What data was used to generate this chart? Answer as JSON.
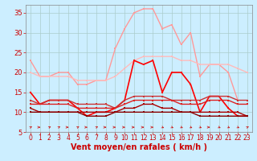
{
  "background_color": "#cceeff",
  "grid_color": "#aacccc",
  "xlabel": "Vent moyen/en rafales ( km/h )",
  "xlabel_color": "#cc0000",
  "xlabel_fontsize": 7,
  "xtick_fontsize": 5.5,
  "ytick_fontsize": 6,
  "ytick_color": "#cc0000",
  "xtick_color": "#cc0000",
  "ylim": [
    5,
    37
  ],
  "xlim": [
    -0.5,
    23.5
  ],
  "yticks": [
    5,
    10,
    15,
    20,
    25,
    30,
    35
  ],
  "xticks": [
    0,
    1,
    2,
    3,
    4,
    5,
    6,
    7,
    8,
    9,
    10,
    11,
    12,
    13,
    14,
    15,
    16,
    17,
    18,
    19,
    20,
    21,
    22,
    23
  ],
  "series": [
    {
      "x": [
        0,
        1,
        2,
        3,
        4,
        5,
        6,
        7,
        8,
        9,
        10,
        11,
        12,
        13,
        14,
        15,
        16,
        17,
        18,
        19,
        20,
        21,
        22
      ],
      "y": [
        23,
        19,
        19,
        20,
        20,
        17,
        17,
        18,
        18,
        26,
        31,
        35,
        36,
        36,
        31,
        32,
        27,
        30,
        19,
        22,
        22,
        20,
        13
      ],
      "color": "#ff9999",
      "lw": 1.0,
      "ms": 2.0
    },
    {
      "x": [
        0,
        1,
        2,
        3,
        4,
        5,
        6,
        7,
        8,
        9,
        10,
        11,
        12,
        13,
        14,
        15,
        16,
        17,
        18,
        19,
        20,
        21,
        22,
        23
      ],
      "y": [
        20,
        19,
        19,
        19,
        19,
        18,
        18,
        18,
        18,
        19,
        21,
        23,
        24,
        24,
        24,
        24,
        23,
        23,
        22,
        22,
        22,
        22,
        21,
        20
      ],
      "color": "#ffbbbb",
      "lw": 1.0,
      "ms": 2.0
    },
    {
      "x": [
        0,
        1,
        2,
        3,
        4,
        5,
        6,
        7,
        8,
        9,
        10,
        11,
        12,
        13,
        14,
        15,
        16,
        17,
        18,
        19,
        20,
        21,
        22,
        23
      ],
      "y": [
        15,
        12,
        13,
        13,
        13,
        11,
        9,
        10,
        10,
        11,
        13,
        23,
        22,
        23,
        15,
        20,
        20,
        17,
        10,
        14,
        14,
        11,
        9,
        9
      ],
      "color": "#ff0000",
      "lw": 1.2,
      "ms": 2.0
    },
    {
      "x": [
        0,
        1,
        2,
        3,
        4,
        5,
        6,
        7,
        8,
        9,
        10,
        11,
        12,
        13,
        14,
        15,
        16,
        17,
        18,
        19,
        20,
        21,
        22,
        23
      ],
      "y": [
        13,
        12,
        13,
        13,
        13,
        12,
        12,
        12,
        12,
        11,
        13,
        14,
        14,
        14,
        14,
        13,
        13,
        13,
        13,
        14,
        14,
        14,
        13,
        13
      ],
      "color": "#cc3333",
      "lw": 1.0,
      "ms": 1.8
    },
    {
      "x": [
        0,
        1,
        2,
        3,
        4,
        5,
        6,
        7,
        8,
        9,
        10,
        11,
        12,
        13,
        14,
        15,
        16,
        17,
        18,
        19,
        20,
        21,
        22,
        23
      ],
      "y": [
        12,
        12,
        12,
        12,
        12,
        11,
        11,
        11,
        11,
        11,
        12,
        13,
        13,
        13,
        13,
        13,
        12,
        12,
        12,
        13,
        13,
        13,
        12,
        12
      ],
      "color": "#dd2222",
      "lw": 1.0,
      "ms": 1.8
    },
    {
      "x": [
        0,
        1,
        2,
        3,
        4,
        5,
        6,
        7,
        8,
        9,
        10,
        11,
        12,
        13,
        14,
        15,
        16,
        17,
        18,
        19,
        20,
        21,
        22,
        23
      ],
      "y": [
        11,
        10,
        10,
        10,
        10,
        10,
        10,
        10,
        10,
        10,
        11,
        11,
        12,
        12,
        11,
        11,
        10,
        10,
        10,
        10,
        10,
        10,
        10,
        9
      ],
      "color": "#aa0000",
      "lw": 1.0,
      "ms": 1.5
    },
    {
      "x": [
        0,
        1,
        2,
        3,
        4,
        5,
        6,
        7,
        8,
        9,
        10,
        11,
        12,
        13,
        14,
        15,
        16,
        17,
        18,
        19,
        20,
        21,
        22,
        23
      ],
      "y": [
        10,
        10,
        10,
        10,
        10,
        10,
        9,
        9,
        9,
        10,
        10,
        10,
        10,
        10,
        10,
        10,
        10,
        10,
        9,
        9,
        9,
        9,
        9,
        9
      ],
      "color": "#880000",
      "lw": 1.0,
      "ms": 1.5
    }
  ],
  "arrow_dirs": [
    45,
    0,
    45,
    45,
    0,
    45,
    0,
    45,
    0,
    0,
    0,
    0,
    0,
    0,
    -45,
    -45,
    -45,
    -45,
    -45,
    0,
    -45,
    -45,
    -45,
    45
  ]
}
